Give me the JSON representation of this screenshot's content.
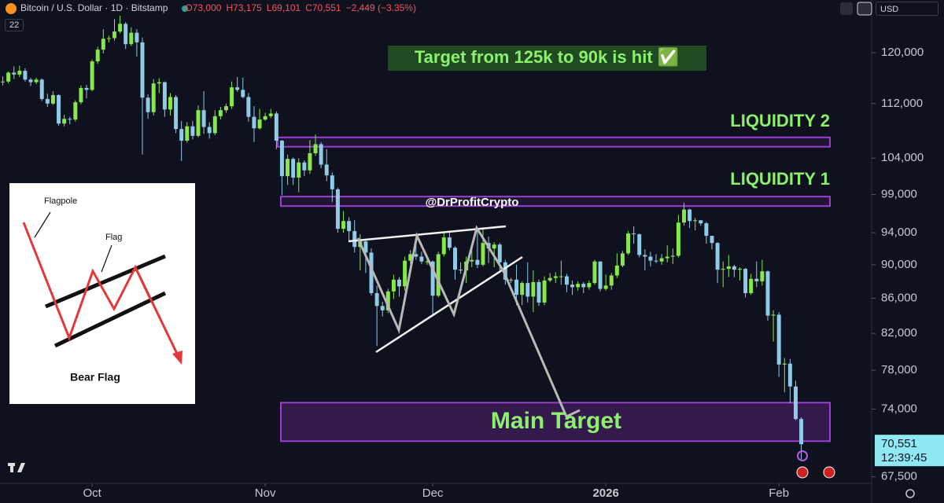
{
  "header": {
    "symbol": "Bitcoin / U.S. Dollar · 1D · Bitstamp",
    "open": "O73,000",
    "high": "H73,175",
    "low": "L69,101",
    "close": "C70,551",
    "change": "−2,449 (−3.35%)",
    "indicator": "22",
    "currency": "USD"
  },
  "inset": {
    "flagpole": "Flagpole",
    "flag": "Flag",
    "title": "Bear Flag"
  },
  "chart_data": {
    "type": "candlestick",
    "annotations": {
      "banner": "Target from 125k to 90k is hit ✅",
      "watermark": "@DrProfitCrypto"
    },
    "zones": [
      {
        "label": "LIQUIDITY 2",
        "range": [
          105630,
          106980
        ]
      },
      {
        "label": "LIQUIDITY 1",
        "range": [
          97460,
          98720
        ]
      },
      {
        "label": "Main Target",
        "range": [
          70840,
          74640
        ]
      }
    ],
    "up_color": "#86e84a",
    "down_color": "#8fcbe6",
    "log": true,
    "grid": false,
    "xlim": [
      -0.5,
      155.6
    ],
    "xticks": [
      {
        "value": 16,
        "label": "Oct"
      },
      {
        "value": 47,
        "label": "Nov"
      },
      {
        "value": 77,
        "label": "Dec"
      },
      {
        "value": 108,
        "label": "2026"
      },
      {
        "value": 139,
        "label": "Feb"
      }
    ],
    "ylim": [
      66900,
      128900
    ],
    "yticks": [
      {
        "value": 120000,
        "label": "120,000"
      },
      {
        "value": 112000,
        "label": "112,000"
      },
      {
        "value": 104000,
        "label": "104,000"
      },
      {
        "value": 99000,
        "label": "99,000"
      },
      {
        "value": 94000,
        "label": "94,000"
      },
      {
        "value": 90000,
        "label": "90,000"
      },
      {
        "value": 86000,
        "label": "86,000"
      },
      {
        "value": 82000,
        "label": "82,000"
      },
      {
        "value": 78000,
        "label": "78,000"
      },
      {
        "value": 74000,
        "label": "74,000"
      },
      {
        "value": 67500,
        "label": "67,500"
      }
    ],
    "first_open": 115300,
    "close": [
      115400,
      116800,
      116500,
      117100,
      115700,
      115300,
      115700,
      112700,
      112000,
      113300,
      109000,
      109700,
      109600,
      112200,
      114400,
      114100,
      118600,
      120500,
      122300,
      122400,
      123500,
      124800,
      121400,
      123300,
      121700,
      112900,
      110700,
      115100,
      115300,
      111100,
      113000,
      108200,
      106500,
      108600,
      107200,
      111000,
      108500,
      107600,
      110100,
      111000,
      111600,
      114500,
      114100,
      113000,
      110000,
      108300,
      109600,
      110100,
      110500,
      106500,
      101500,
      103900,
      101300,
      103400,
      102300,
      104700,
      106000,
      103100,
      101600,
      99700,
      94500,
      95500,
      94200,
      92200,
      92900,
      91500,
      86600,
      85100,
      84600,
      86800,
      88200,
      87400,
      90500,
      91300,
      91000,
      90400,
      90400,
      86300,
      91300,
      93400,
      92100,
      89400,
      89300,
      90400,
      90600,
      90000,
      92700,
      92000,
      92500,
      90300,
      88200,
      88200,
      86400,
      87800,
      86200,
      87900,
      85500,
      88100,
      88400,
      88600,
      88600,
      87600,
      87300,
      87700,
      87300,
      87800,
      90400,
      87100,
      87500,
      88700,
      89900,
      91400,
      93900,
      93800,
      91200,
      91000,
      90500,
      90400,
      90800,
      91000,
      91100,
      95300,
      97000,
      95500,
      95600,
      95200,
      93600,
      92700,
      89400,
      89500,
      89800,
      89400,
      89500,
      86600,
      88300,
      88000,
      89200,
      84000,
      84100,
      78600,
      78700,
      76300,
      73000,
      70551
    ],
    "high": [
      116200,
      117000,
      117800,
      117900,
      117500,
      116000,
      116000,
      115900,
      113500,
      113900,
      113400,
      110300,
      110000,
      112500,
      114800,
      114900,
      118900,
      121000,
      123900,
      122800,
      125600,
      126200,
      125100,
      124200,
      123900,
      122500,
      113400,
      115800,
      115900,
      115400,
      113600,
      113300,
      109400,
      109200,
      109400,
      111700,
      113900,
      109200,
      111000,
      111500,
      112000,
      115400,
      116100,
      116000,
      113600,
      111600,
      111200,
      110600,
      111200,
      110800,
      106600,
      104500,
      104100,
      104000,
      103700,
      106600,
      107400,
      106300,
      105300,
      102000,
      99900,
      96800,
      96000,
      95600,
      93800,
      93100,
      92000,
      87500,
      85600,
      87100,
      88800,
      88500,
      91000,
      91800,
      92900,
      91600,
      91200,
      90500,
      91600,
      94000,
      94000,
      92300,
      90300,
      91000,
      92200,
      94400,
      94600,
      93500,
      92800,
      92700,
      90600,
      88400,
      90000,
      88000,
      90300,
      89300,
      88200,
      88600,
      89000,
      89100,
      90500,
      88900,
      88100,
      88000,
      87900,
      88100,
      90600,
      90400,
      88800,
      89000,
      91400,
      91700,
      94200,
      94800,
      93900,
      91900,
      91600,
      91300,
      91300,
      92400,
      92000,
      96300,
      97900,
      97100,
      95900,
      95600,
      95400,
      93600,
      92800,
      90400,
      91200,
      90000,
      89700,
      89600,
      88900,
      90400,
      90600,
      89300,
      84600,
      84400,
      79300,
      79200,
      76900,
      73175
    ],
    "low": [
      114800,
      115100,
      115800,
      116100,
      115400,
      114700,
      115000,
      112400,
      111500,
      111800,
      108700,
      108600,
      108900,
      109300,
      111900,
      112800,
      113900,
      118200,
      119900,
      121700,
      122000,
      123200,
      120600,
      121100,
      119400,
      104500,
      109700,
      110200,
      113600,
      110000,
      110200,
      107600,
      103600,
      106200,
      106700,
      107000,
      107500,
      106800,
      107300,
      109600,
      110600,
      111200,
      113800,
      112800,
      109300,
      106300,
      108100,
      109400,
      109800,
      105300,
      98900,
      100300,
      100300,
      99300,
      101500,
      101800,
      104300,
      102600,
      100800,
      98000,
      94000,
      94000,
      93000,
      91500,
      89300,
      89000,
      86300,
      80600,
      83900,
      84300,
      85900,
      86200,
      86900,
      90100,
      90600,
      90100,
      90000,
      83900,
      86100,
      91000,
      91800,
      88200,
      88900,
      87800,
      89700,
      89600,
      89800,
      90200,
      89700,
      89300,
      87600,
      87800,
      85200,
      85200,
      85500,
      84400,
      85100,
      85200,
      87900,
      87800,
      87600,
      86700,
      86400,
      86900,
      86600,
      87000,
      87600,
      86800,
      86900,
      87000,
      88400,
      89700,
      91200,
      92600,
      90900,
      89300,
      89800,
      90200,
      90000,
      90300,
      90100,
      90900,
      94900,
      94600,
      94300,
      94900,
      92600,
      91900,
      87800,
      87300,
      88500,
      88500,
      88100,
      86100,
      86400,
      87300,
      87500,
      83400,
      81100,
      77300,
      75700,
      74600,
      72900,
      69101
    ],
    "price_label": "70,551",
    "countdown": "12:39:45"
  }
}
